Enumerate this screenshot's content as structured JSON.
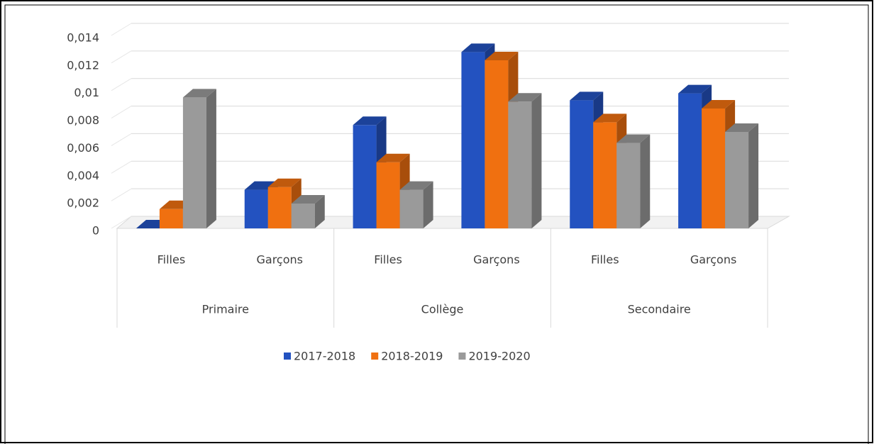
{
  "chart_data": {
    "type": "bar3d",
    "groups": [
      {
        "name": "Primaire",
        "categories": [
          "Filles",
          "Garçons"
        ]
      },
      {
        "name": "Collège",
        "categories": [
          "Filles",
          "Garçons"
        ]
      },
      {
        "name": "Secondaire",
        "categories": [
          "Filles",
          "Garçons"
        ]
      }
    ],
    "series": [
      {
        "name": "2017-2018",
        "color": "#2352c0",
        "values": [
          0,
          0.0028,
          0.0075,
          0.0128,
          0.0093,
          0.0098
        ]
      },
      {
        "name": "2018-2019",
        "color": "#f07010",
        "values": [
          0.0014,
          0.003,
          0.0048,
          0.0122,
          0.0077,
          0.0087
        ]
      },
      {
        "name": "2019-2020",
        "color": "#9a9a9a",
        "values": [
          0.0095,
          0.0018,
          0.0028,
          0.0092,
          0.0062,
          0.007
        ]
      }
    ],
    "ylim": [
      0,
      0.014
    ],
    "yticks": [
      0,
      {
        "value": 0.002,
        "label": "0,002"
      },
      {
        "value": 0.004,
        "label": "0,004"
      },
      {
        "value": 0.006,
        "label": "0,006"
      },
      {
        "value": 0.008,
        "label": "0,008"
      },
      {
        "value": 0.01,
        "label": "0,01"
      },
      {
        "value": 0.012,
        "label": "0,012"
      },
      {
        "value": 0.014,
        "label": "0,014"
      }
    ],
    "grid": true,
    "legend": "bottom"
  }
}
